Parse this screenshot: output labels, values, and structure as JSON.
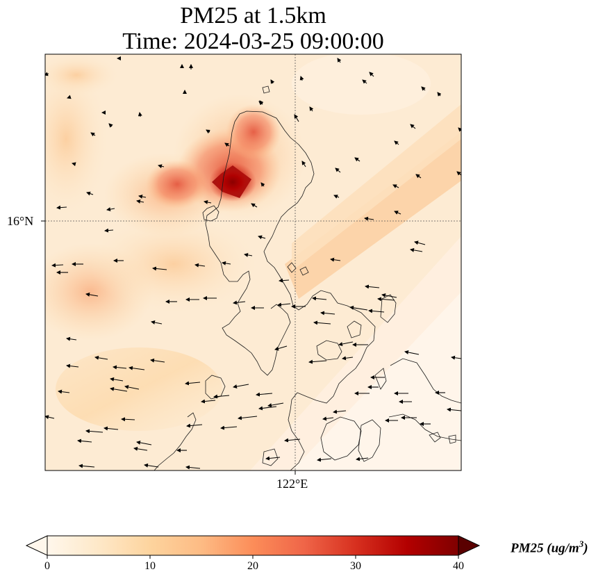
{
  "title": {
    "line1": "PM25 at 1.5km",
    "line2": "Time: 2024-03-25 09:00:00"
  },
  "map": {
    "latitude_gridline_label": "16°N",
    "longitude_gridline_label": "122°E",
    "field": "PM25",
    "level": "1.5km",
    "plume_maxima_ug_m3": {
      "north_hotspot": 40,
      "west_band": 18
    },
    "wind_direction": "mostly westward / north-westward"
  },
  "colorbar": {
    "label_text": "PM25 (ug/m",
    "label_exponent": "3",
    "label_close": ")",
    "ticks": [
      "0",
      "10",
      "20",
      "30",
      "40"
    ],
    "range": [
      0,
      40
    ],
    "colormap": "OrRd",
    "colors": [
      "#fff7ec",
      "#fee8c8",
      "#fdd49e",
      "#fdbb84",
      "#fc8d59",
      "#ef6548",
      "#d7301f",
      "#b30000",
      "#7f0000"
    ]
  }
}
